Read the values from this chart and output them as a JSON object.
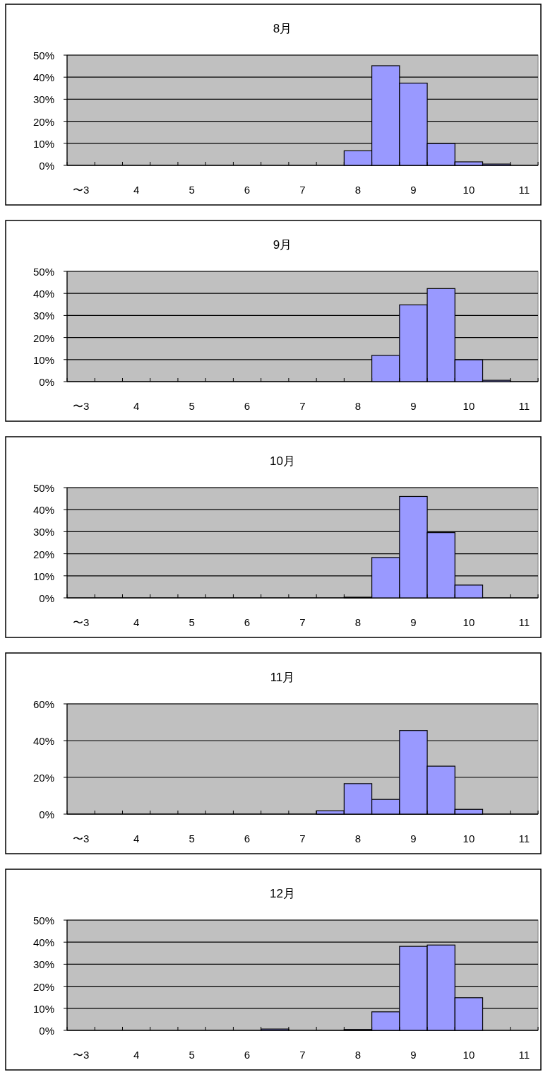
{
  "chart_data": [
    {
      "type": "bar",
      "title": "8月",
      "categories": [
        "〜3",
        null,
        "4",
        null,
        "5",
        null,
        "6",
        null,
        "7",
        null,
        "8",
        null,
        "9",
        null,
        "10",
        null,
        "11"
      ],
      "values": [
        0,
        0,
        0,
        0,
        0,
        0,
        0,
        0,
        0,
        0,
        6.6,
        45.2,
        37.3,
        9.9,
        1.6,
        0.6,
        0
      ],
      "color": "#9999ff",
      "ylim": [
        0,
        50
      ],
      "yticks": [
        {
          "value": 0,
          "label": "0%"
        },
        {
          "value": 10,
          "label": "10%"
        },
        {
          "value": 20,
          "label": "20%"
        },
        {
          "value": 30,
          "label": "30%"
        },
        {
          "value": 40,
          "label": "40%"
        },
        {
          "value": 50,
          "label": "50%"
        }
      ],
      "grid": "y"
    },
    {
      "type": "bar",
      "title": "9月",
      "categories": [
        "〜3",
        null,
        "4",
        null,
        "5",
        null,
        "6",
        null,
        "7",
        null,
        "8",
        null,
        "9",
        null,
        "10",
        null,
        "11"
      ],
      "values": [
        0,
        0,
        0,
        0,
        0,
        0,
        0,
        0,
        0,
        0,
        0,
        11.9,
        34.8,
        42.2,
        9.9,
        0.6,
        0
      ],
      "color": "#9999ff",
      "ylim": [
        0,
        50
      ],
      "yticks": [
        {
          "value": 0,
          "label": "0%"
        },
        {
          "value": 10,
          "label": "10%"
        },
        {
          "value": 20,
          "label": "20%"
        },
        {
          "value": 30,
          "label": "30%"
        },
        {
          "value": 40,
          "label": "40%"
        },
        {
          "value": 50,
          "label": "50%"
        }
      ],
      "grid": "y"
    },
    {
      "type": "bar",
      "title": "10月",
      "categories": [
        "〜3",
        null,
        "4",
        null,
        "5",
        null,
        "6",
        null,
        "7",
        null,
        "8",
        null,
        "9",
        null,
        "10",
        null,
        "11"
      ],
      "values": [
        0,
        0,
        0,
        0,
        0,
        0,
        0,
        0,
        0,
        0,
        0.3,
        18.3,
        46.0,
        29.6,
        5.8,
        0,
        0
      ],
      "color": "#9999ff",
      "ylim": [
        0,
        50
      ],
      "yticks": [
        {
          "value": 0,
          "label": "0%"
        },
        {
          "value": 10,
          "label": "10%"
        },
        {
          "value": 20,
          "label": "20%"
        },
        {
          "value": 30,
          "label": "30%"
        },
        {
          "value": 40,
          "label": "40%"
        },
        {
          "value": 50,
          "label": "50%"
        }
      ],
      "grid": "y"
    },
    {
      "type": "bar",
      "title": "11月",
      "categories": [
        "〜3",
        null,
        "4",
        null,
        "5",
        null,
        "6",
        null,
        "7",
        null,
        "8",
        null,
        "9",
        null,
        "10",
        null,
        "11"
      ],
      "values": [
        0,
        0,
        0,
        0,
        0,
        0,
        0,
        0,
        0,
        1.8,
        16.6,
        8.0,
        45.5,
        26.1,
        2.6,
        0,
        0
      ],
      "color": "#9999ff",
      "ylim": [
        0,
        60
      ],
      "yticks": [
        {
          "value": 0,
          "label": "0%"
        },
        {
          "value": 20,
          "label": "20%"
        },
        {
          "value": 40,
          "label": "40%"
        },
        {
          "value": 60,
          "label": "60%"
        }
      ],
      "grid": "y"
    },
    {
      "type": "bar",
      "title": "12月",
      "categories": [
        "〜3",
        null,
        "4",
        null,
        "5",
        null,
        "6",
        null,
        "7",
        null,
        "8",
        null,
        "9",
        null,
        "10",
        null,
        "11"
      ],
      "values": [
        0,
        0,
        0,
        0,
        0,
        0,
        0,
        0.6,
        0,
        0,
        0.4,
        8.4,
        38.1,
        38.7,
        14.8,
        0,
        0
      ],
      "color": "#9999ff",
      "ylim": [
        0,
        50
      ],
      "yticks": [
        {
          "value": 0,
          "label": "0%"
        },
        {
          "value": 10,
          "label": "10%"
        },
        {
          "value": 20,
          "label": "20%"
        },
        {
          "value": 30,
          "label": "30%"
        },
        {
          "value": 40,
          "label": "40%"
        },
        {
          "value": 50,
          "label": "50%"
        }
      ],
      "grid": "y"
    }
  ]
}
